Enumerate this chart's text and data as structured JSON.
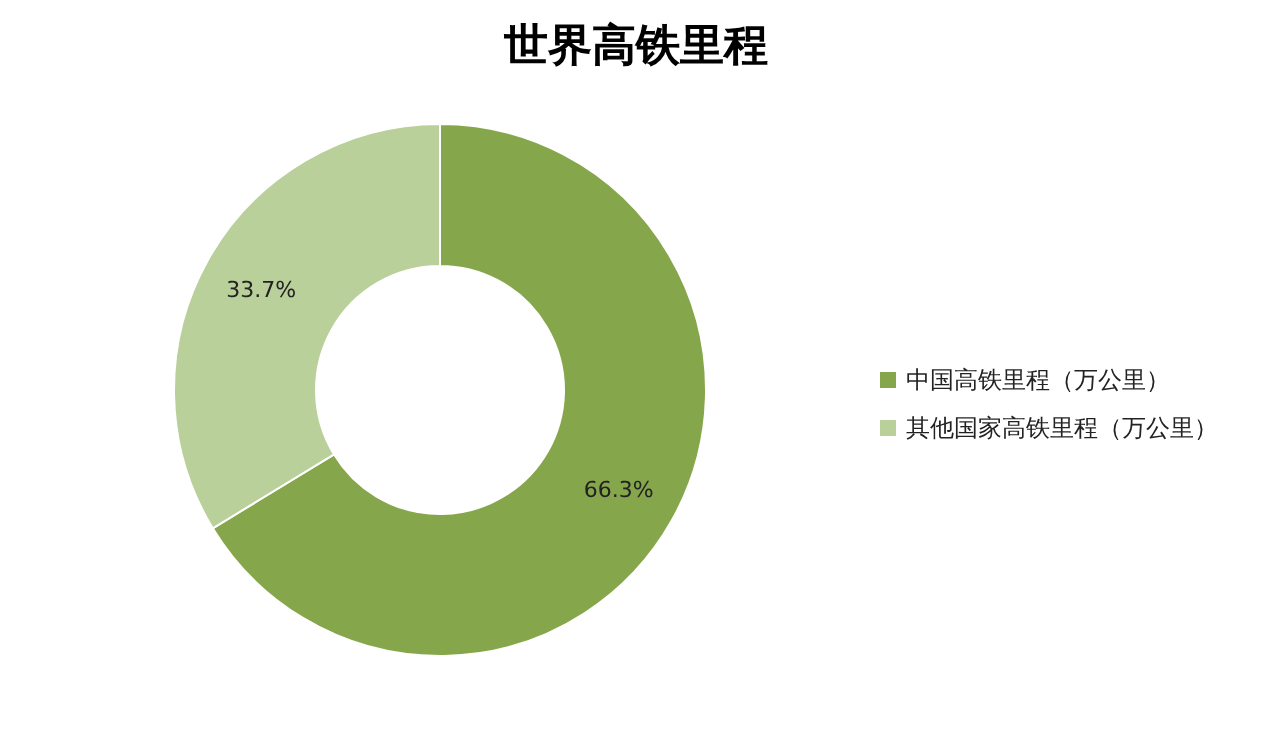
{
  "chart_data": {
    "type": "donut",
    "title": "世界高铁里程",
    "categories": [
      "中国高铁里程（万公里）",
      "其他国家高铁里程（万公里）"
    ],
    "values": [
      66.3,
      33.7
    ],
    "colors": [
      "#86a64b",
      "#b9d09a"
    ],
    "value_labels": [
      "66.3%",
      "33.7%"
    ],
    "legend": "right"
  }
}
